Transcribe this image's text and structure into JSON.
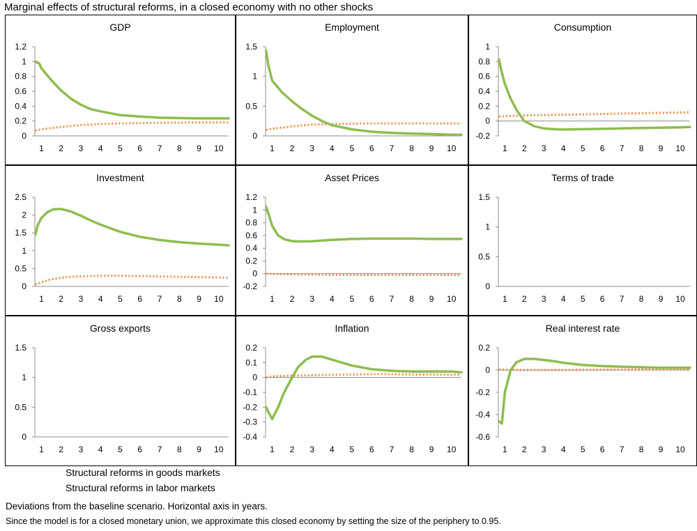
{
  "figure": {
    "title": "Marginal effects of structural reforms, in a closed economy with no other shocks",
    "notes": [
      "Deviations from the baseline scenario. Horizontal axis in years.",
      "Since the model is for a closed monetary union, we approximate this closed economy by setting the size of the periphery to 0.95."
    ]
  },
  "legend": [
    {
      "label": "Structural reforms in goods markets",
      "color": "#8FBC4F",
      "style": "solid"
    },
    {
      "label": "Structural reforms in labor markets",
      "color": "#F0883E",
      "style": "dotted"
    }
  ],
  "colors": {
    "goods": "#8FBC4F",
    "labor": "#F0883E",
    "axis": "#8c8c8c",
    "border": "#000000"
  },
  "chart_data": [
    {
      "type": "line",
      "title": "GDP",
      "x_ticks": [
        "1",
        "2",
        "3",
        "4",
        "5",
        "6",
        "7",
        "8",
        "9",
        "10"
      ],
      "x_range": [
        0.667,
        10.5
      ],
      "y_ticks": [
        "1.2",
        "1",
        "0.8",
        "0.6",
        "0.4",
        "0.2",
        "0"
      ],
      "ylim": [
        0,
        1.2
      ],
      "series": [
        {
          "name": "Structural reforms in goods markets",
          "x": [
            0.7,
            0.9,
            1.0,
            1.5,
            2,
            2.5,
            3,
            3.5,
            4,
            5,
            6,
            7,
            8,
            9,
            10,
            10.5
          ],
          "y": [
            1.0,
            0.97,
            0.91,
            0.75,
            0.61,
            0.5,
            0.42,
            0.36,
            0.33,
            0.28,
            0.26,
            0.245,
            0.24,
            0.235,
            0.235,
            0.235
          ]
        },
        {
          "name": "Structural reforms in labor markets",
          "x": [
            0.7,
            1,
            2,
            3,
            4,
            5,
            6,
            7,
            8,
            9,
            10,
            10.5
          ],
          "y": [
            0.07,
            0.09,
            0.12,
            0.145,
            0.16,
            0.168,
            0.172,
            0.176,
            0.178,
            0.18,
            0.18,
            0.18
          ]
        }
      ]
    },
    {
      "type": "line",
      "title": "Employment",
      "x_ticks": [
        "1",
        "2",
        "3",
        "4",
        "5",
        "6",
        "7",
        "8",
        "9",
        "10"
      ],
      "x_range": [
        0.667,
        10.5
      ],
      "y_ticks": [
        "1.5",
        "1",
        "0.5",
        "0"
      ],
      "ylim": [
        0,
        1.5
      ],
      "series": [
        {
          "name": "Structural reforms in goods markets",
          "x": [
            0.7,
            0.8,
            1.0,
            1.5,
            2,
            2.5,
            3,
            3.5,
            4,
            5,
            6,
            7,
            8,
            9,
            10,
            10.5
          ],
          "y": [
            1.43,
            1.2,
            0.93,
            0.73,
            0.58,
            0.45,
            0.34,
            0.25,
            0.18,
            0.11,
            0.07,
            0.05,
            0.04,
            0.03,
            0.02,
            0.02
          ]
        },
        {
          "name": "Structural reforms in labor markets",
          "x": [
            0.7,
            1,
            2,
            3,
            4,
            5,
            6,
            7,
            8,
            9,
            10,
            10.5
          ],
          "y": [
            0.1,
            0.12,
            0.16,
            0.19,
            0.2,
            0.205,
            0.21,
            0.21,
            0.21,
            0.21,
            0.21,
            0.21
          ]
        }
      ]
    },
    {
      "type": "line",
      "title": "Consumption",
      "x_ticks": [
        "1",
        "2",
        "3",
        "4",
        "5",
        "6",
        "7",
        "8",
        "9",
        "10"
      ],
      "x_range": [
        0.667,
        10.5
      ],
      "y_ticks": [
        "1",
        "0.8",
        "0.6",
        "0.4",
        "0.2",
        "0",
        "-0.2"
      ],
      "ylim": [
        -0.2,
        1.0
      ],
      "series": [
        {
          "name": "Structural reforms in goods markets",
          "x": [
            0.7,
            0.8,
            1.0,
            1.3,
            1.6,
            2,
            2.5,
            3,
            3.5,
            4,
            5,
            6,
            7,
            8,
            9,
            10,
            10.5
          ],
          "y": [
            0.83,
            0.7,
            0.5,
            0.3,
            0.15,
            0.0,
            -0.07,
            -0.1,
            -0.11,
            -0.115,
            -0.11,
            -0.105,
            -0.1,
            -0.095,
            -0.09,
            -0.085,
            -0.08
          ]
        },
        {
          "name": "Structural reforms in labor markets",
          "x": [
            0.7,
            1,
            2,
            3,
            4,
            5,
            6,
            7,
            8,
            9,
            10,
            10.5
          ],
          "y": [
            0.06,
            0.065,
            0.075,
            0.08,
            0.085,
            0.09,
            0.095,
            0.1,
            0.105,
            0.11,
            0.115,
            0.12
          ]
        }
      ]
    },
    {
      "type": "line",
      "title": "Investment",
      "x_ticks": [
        "1",
        "2",
        "3",
        "4",
        "5",
        "6",
        "7",
        "8",
        "9",
        "10"
      ],
      "x_range": [
        0.667,
        10.5
      ],
      "y_ticks": [
        "2.5",
        "2",
        "1.5",
        "1",
        "0.5",
        "0"
      ],
      "ylim": [
        0,
        2.5
      ],
      "series": [
        {
          "name": "Structural reforms in goods markets",
          "x": [
            0.7,
            0.8,
            1.0,
            1.3,
            1.6,
            2,
            2.5,
            3,
            3.5,
            4,
            5,
            6,
            7,
            8,
            9,
            10,
            10.5
          ],
          "y": [
            1.45,
            1.7,
            1.92,
            2.08,
            2.16,
            2.17,
            2.1,
            1.98,
            1.85,
            1.73,
            1.53,
            1.39,
            1.3,
            1.24,
            1.2,
            1.17,
            1.15
          ]
        },
        {
          "name": "Structural reforms in labor markets",
          "x": [
            0.7,
            1,
            1.5,
            2,
            2.5,
            3,
            4,
            5,
            6,
            7,
            8,
            9,
            10,
            10.5
          ],
          "y": [
            0.05,
            0.12,
            0.2,
            0.24,
            0.27,
            0.28,
            0.3,
            0.3,
            0.29,
            0.28,
            0.27,
            0.26,
            0.25,
            0.24
          ]
        }
      ]
    },
    {
      "type": "line",
      "title": "Asset Prices",
      "x_ticks": [
        "1",
        "2",
        "3",
        "4",
        "5",
        "6",
        "7",
        "8",
        "9",
        "10"
      ],
      "x_range": [
        0.667,
        10.5
      ],
      "y_ticks": [
        "1.2",
        "1",
        "0.8",
        "0.6",
        "0.4",
        "0.2",
        "0",
        "-0.2"
      ],
      "ylim": [
        -0.2,
        1.2
      ],
      "series": [
        {
          "name": "Structural reforms in goods markets",
          "x": [
            0.7,
            0.8,
            1.0,
            1.3,
            1.6,
            2,
            2.5,
            3,
            3.5,
            4,
            5,
            6,
            7,
            8,
            9,
            10,
            10.5
          ],
          "y": [
            1.05,
            0.95,
            0.75,
            0.6,
            0.54,
            0.51,
            0.505,
            0.51,
            0.52,
            0.53,
            0.545,
            0.55,
            0.55,
            0.55,
            0.545,
            0.545,
            0.545
          ]
        },
        {
          "name": "Structural reforms in labor markets",
          "x": [
            0.7,
            1,
            2,
            3,
            4,
            5,
            6,
            7,
            8,
            9,
            10,
            10.5
          ],
          "y": [
            0.0,
            -0.005,
            -0.01,
            -0.015,
            -0.018,
            -0.02,
            -0.02,
            -0.02,
            -0.02,
            -0.02,
            -0.02,
            -0.02
          ]
        }
      ]
    },
    {
      "type": "line",
      "title": "Terms of trade",
      "x_ticks": [
        "1",
        "2",
        "3",
        "4",
        "5",
        "6",
        "7",
        "8",
        "9",
        "10"
      ],
      "x_range": [
        0.667,
        10.5
      ],
      "y_ticks": [
        "1.5",
        "1",
        "0.5",
        "0"
      ],
      "ylim": [
        0,
        1.5
      ],
      "series": []
    },
    {
      "type": "line",
      "title": "Gross exports",
      "x_ticks": [
        "1",
        "2",
        "3",
        "4",
        "5",
        "6",
        "7",
        "8",
        "9",
        "10"
      ],
      "x_range": [
        0.667,
        10.5
      ],
      "y_ticks": [
        "1.5",
        "1",
        "0.5",
        "0"
      ],
      "ylim": [
        0,
        1.5
      ],
      "series": []
    },
    {
      "type": "line",
      "title": "Inflation",
      "x_ticks": [
        "1",
        "2",
        "3",
        "4",
        "5",
        "6",
        "7",
        "8",
        "9",
        "10"
      ],
      "x_range": [
        0.667,
        10.5
      ],
      "y_ticks": [
        "0.2",
        "0.1",
        "0",
        "-0.1",
        "-0.2",
        "-0.3",
        "-0.4"
      ],
      "ylim": [
        -0.4,
        0.2
      ],
      "series": [
        {
          "name": "Structural reforms in goods markets",
          "x": [
            0.7,
            0.8,
            1.0,
            1.3,
            1.6,
            2,
            2.3,
            2.7,
            3,
            3.5,
            4,
            5,
            6,
            7,
            8,
            9,
            10,
            10.5
          ],
          "y": [
            -0.2,
            -0.23,
            -0.28,
            -0.2,
            -0.1,
            0.0,
            0.07,
            0.12,
            0.14,
            0.14,
            0.12,
            0.08,
            0.055,
            0.045,
            0.04,
            0.04,
            0.04,
            0.035
          ]
        },
        {
          "name": "Structural reforms in labor markets",
          "x": [
            0.7,
            1,
            2,
            3,
            4,
            5,
            6,
            7,
            8,
            9,
            10,
            10.5
          ],
          "y": [
            0.0,
            0.008,
            0.012,
            0.015,
            0.018,
            0.02,
            0.022,
            0.022,
            0.02,
            0.02,
            0.018,
            0.018
          ]
        }
      ]
    },
    {
      "type": "line",
      "title": "Real interest rate",
      "x_ticks": [
        "1",
        "2",
        "3",
        "4",
        "5",
        "6",
        "7",
        "8",
        "9",
        "10"
      ],
      "x_range": [
        0.667,
        10.5
      ],
      "y_ticks": [
        "0.2",
        "0",
        "-0.2",
        "-0.4",
        "-0.6"
      ],
      "ylim": [
        -0.6,
        0.2
      ],
      "series": [
        {
          "name": "Structural reforms in goods markets",
          "x": [
            0.7,
            0.85,
            1.0,
            1.3,
            1.6,
            2,
            2.5,
            3,
            3.5,
            4,
            5,
            6,
            7,
            8,
            9,
            10,
            10.5
          ],
          "y": [
            -0.46,
            -0.48,
            -0.2,
            0.0,
            0.07,
            0.1,
            0.1,
            0.09,
            0.08,
            0.065,
            0.045,
            0.035,
            0.03,
            0.025,
            0.02,
            0.02,
            0.02
          ]
        },
        {
          "name": "Structural reforms in labor markets",
          "x": [
            0.7,
            1,
            2,
            3,
            4,
            5,
            6,
            7,
            8,
            9,
            10,
            10.5
          ],
          "y": [
            0.005,
            0.002,
            0.0,
            0.0,
            0.0,
            0.002,
            0.003,
            0.004,
            0.005,
            0.005,
            0.005,
            0.005
          ]
        }
      ]
    }
  ]
}
